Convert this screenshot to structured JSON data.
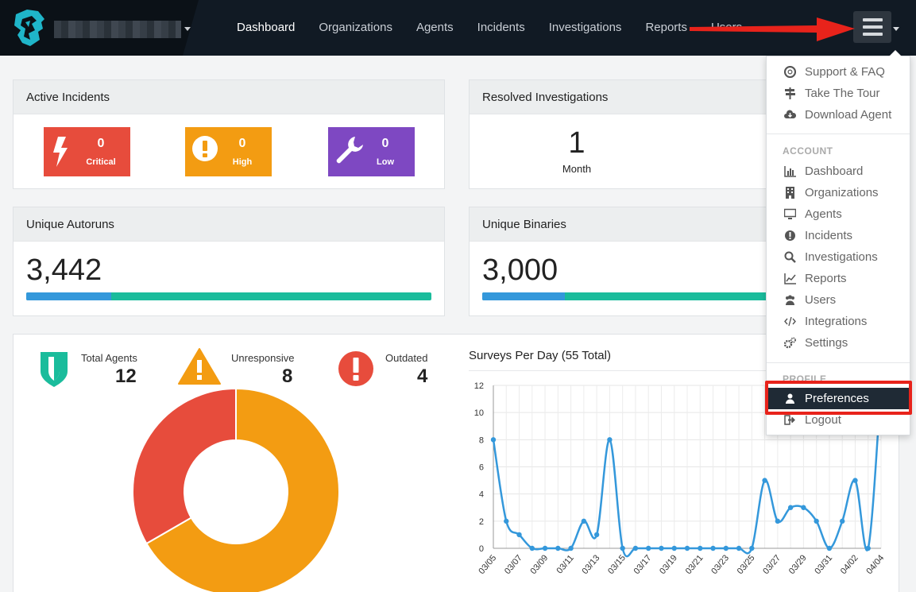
{
  "nav": {
    "items": [
      {
        "label": "Dashboard",
        "active": true
      },
      {
        "label": "Organizations",
        "active": false
      },
      {
        "label": "Agents",
        "active": false
      },
      {
        "label": "Incidents",
        "active": false
      },
      {
        "label": "Investigations",
        "active": false
      },
      {
        "label": "Reports",
        "active": false
      },
      {
        "label": "Users",
        "active": false
      }
    ],
    "menu_icon": "hamburger-menu-icon"
  },
  "active_incidents": {
    "title": "Active Incidents",
    "items": [
      {
        "label": "Critical",
        "value": "0",
        "color": "#e74c3c",
        "icon": "lightning-icon"
      },
      {
        "label": "High",
        "value": "0",
        "color": "#f39c12",
        "icon": "exclamation-icon"
      },
      {
        "label": "Low",
        "value": "0",
        "color": "#7e48c2",
        "icon": "wrench-icon"
      }
    ]
  },
  "resolved_investigations": {
    "title": "Resolved Investigations",
    "value": "1",
    "period": "Month"
  },
  "unique_autoruns": {
    "title": "Unique Autoruns",
    "value": "3,442",
    "bar_fraction": 0.21
  },
  "unique_binaries": {
    "title": "Unique Binaries",
    "value": "3,000",
    "bar_fraction": 0.29
  },
  "agents": {
    "total_label": "Total Agents",
    "total_value": "12",
    "unresponsive_label": "Unresponsive",
    "unresponsive_value": "8",
    "outdated_label": "Outdated",
    "outdated_value": "4"
  },
  "colors": {
    "accent_blue": "#3498db",
    "accent_teal": "#1abc9c",
    "orange": "#f39c12",
    "red": "#e74c3c"
  },
  "chart_data": [
    {
      "type": "pie",
      "labels": [
        "Unresponsive",
        "Outdated"
      ],
      "values": [
        8,
        4
      ],
      "colors": [
        "#f39c12",
        "#e74c3c"
      ],
      "donut": true
    },
    {
      "type": "line",
      "title": "Surveys Per Day (55 Total)",
      "x": [
        "03/05",
        "03/06",
        "03/07",
        "03/08",
        "03/09",
        "03/10",
        "03/11",
        "03/12",
        "03/13",
        "03/14",
        "03/15",
        "03/16",
        "03/17",
        "03/18",
        "03/19",
        "03/20",
        "03/21",
        "03/22",
        "03/23",
        "03/24",
        "03/25",
        "03/26",
        "03/27",
        "03/28",
        "03/29",
        "03/30",
        "03/31",
        "04/01",
        "04/02",
        "04/03",
        "04/04"
      ],
      "x_tick_labels": [
        "03/05",
        "03/07",
        "03/09",
        "03/11",
        "03/13",
        "03/15",
        "03/17",
        "03/19",
        "03/21",
        "03/23",
        "03/25",
        "03/27",
        "03/29",
        "03/31",
        "04/02",
        "04/04"
      ],
      "y_ticks": [
        "0",
        "2",
        "4",
        "6",
        "8",
        "10",
        "12"
      ],
      "series": [
        {
          "values": [
            8,
            2,
            1,
            0,
            0,
            0,
            0,
            2,
            1,
            8,
            0,
            0,
            0,
            0,
            0,
            0,
            0,
            0,
            0,
            0,
            0,
            5,
            2,
            3,
            3,
            2,
            0,
            2,
            5,
            0,
            12
          ],
          "color": "#3498db"
        }
      ],
      "ylim": [
        0,
        12
      ],
      "grid": true
    }
  ],
  "dropdown": {
    "help_items": [
      {
        "label": "Support & FAQ",
        "icon": "lifebuoy-icon"
      },
      {
        "label": "Take The Tour",
        "icon": "signpost-icon"
      },
      {
        "label": "Download Agent",
        "icon": "cloud-download-icon"
      }
    ],
    "account_header": "ACCOUNT",
    "account_items": [
      {
        "label": "Dashboard",
        "icon": "bar-chart-icon"
      },
      {
        "label": "Organizations",
        "icon": "building-icon"
      },
      {
        "label": "Agents",
        "icon": "monitor-icon"
      },
      {
        "label": "Incidents",
        "icon": "exclamation-circle-icon"
      },
      {
        "label": "Investigations",
        "icon": "search-icon"
      },
      {
        "label": "Reports",
        "icon": "line-chart-icon"
      },
      {
        "label": "Users",
        "icon": "users-icon"
      },
      {
        "label": "Integrations",
        "icon": "code-icon"
      },
      {
        "label": "Settings",
        "icon": "cogs-icon"
      }
    ],
    "profile_header": "PROFILE",
    "profile_items": [
      {
        "label": "Preferences",
        "icon": "user-icon",
        "selected": true
      },
      {
        "label": "Logout",
        "icon": "sign-out-icon",
        "selected": false
      }
    ]
  }
}
